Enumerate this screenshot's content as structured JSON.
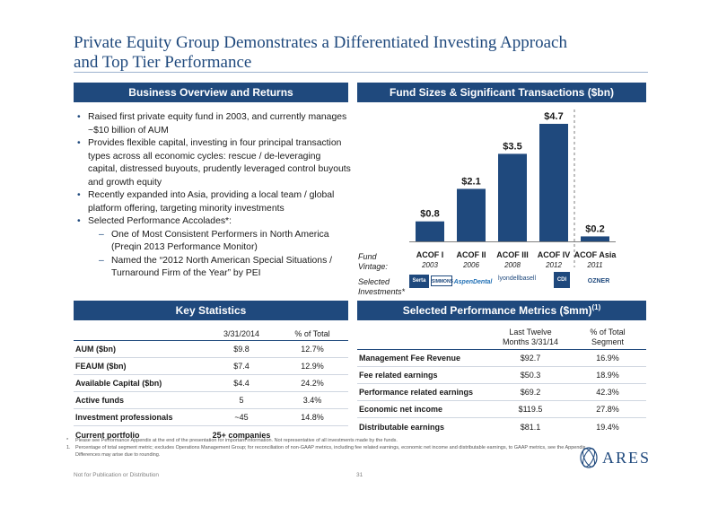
{
  "title": {
    "line1": "Private Equity Group Demonstrates a Differentiated Investing Approach",
    "line2": "and Top Tier Performance"
  },
  "sections": {
    "business": "Business Overview and Returns",
    "funds": "Fund Sizes & Significant Transactions ($bn)",
    "key_stats": "Key Statistics",
    "metrics": "Selected Performance Metrics ($mm)",
    "metrics_sup": "(1)"
  },
  "overview": {
    "bullets": [
      "Raised first private equity fund in 2003, and currently manages ~$10 billion of AUM",
      "Provides flexible capital, investing in four principal transaction types across all economic cycles: rescue / de-leveraging capital, distressed buyouts, prudently leveraged control buyouts and growth equity",
      "Recently expanded into Asia, providing a local team / global platform offering, targeting minority investments",
      "Selected Performance Accolades*:"
    ],
    "sub_bullets": [
      "One of Most Consistent Performers in North America (Preqin 2013 Performance Monitor)",
      "Named the “2012 North American Special Situations / Turnaround Firm of the Year” by PEI"
    ]
  },
  "chart_data": {
    "type": "bar",
    "categories": [
      "ACOF I",
      "ACOF II",
      "ACOF III",
      "ACOF IV",
      "ACOF Asia"
    ],
    "vintages": [
      "2003",
      "2006",
      "2008",
      "2012",
      "2011"
    ],
    "values": [
      0.8,
      2.1,
      3.5,
      4.7,
      0.2
    ],
    "data_labels": [
      "$0.8",
      "$2.1",
      "$3.5",
      "$4.7",
      "$0.2"
    ],
    "unit": "$bn",
    "ylim": [
      0,
      4.7
    ],
    "bar_color": "#1f497d",
    "row_labels": {
      "vintage": "Fund\nVintage:",
      "investments": "Selected\nInvestments*"
    },
    "investment_logos": [
      "Serta",
      "SIMMONS",
      "AspenDental",
      "lyondellbasell",
      "CDI",
      "OZNER"
    ]
  },
  "key_stats": {
    "headers": [
      "",
      "3/31/2014",
      "% of Total"
    ],
    "rows": [
      [
        "AUM ($bn)",
        "$9.8",
        "12.7%"
      ],
      [
        "FEAUM ($bn)",
        "$7.4",
        "12.9%"
      ],
      [
        "Available Capital ($bn)",
        "$4.4",
        "24.2%"
      ],
      [
        "Active funds",
        "5",
        "3.4%"
      ],
      [
        "Investment professionals",
        "~45",
        "14.8%"
      ],
      [
        "Current portfolio",
        "25+ companies",
        ""
      ]
    ]
  },
  "metrics": {
    "headers": [
      "",
      "Last Twelve\nMonths 3/31/14",
      "% of Total\nSegment"
    ],
    "rows": [
      [
        "Management Fee Revenue",
        "$92.7",
        "16.9%"
      ],
      [
        "Fee related earnings",
        "$50.3",
        "18.9%"
      ],
      [
        "Performance related earnings",
        "$69.2",
        "42.3%"
      ],
      [
        "Economic net income",
        "$119.5",
        "27.8%"
      ],
      [
        "Distributable earnings",
        "$81.1",
        "19.4%"
      ]
    ]
  },
  "footnotes": [
    {
      "mark": "*",
      "text": "Please see Performance Appendix at the end of the presentation for important information. Not representative of all investments made by the funds."
    },
    {
      "mark": "1.",
      "text": "Percentage of total segment metric; excludes Operations Management Group; for reconciliation of non-GAAP metrics, including fee related earnings, economic net income and distributable earnings, to GAAP metrics, see the Appendix. Differences may arise due to rounding."
    }
  ],
  "footer": {
    "confidential": "Not for Publication or Distribution",
    "page": "31",
    "brand": "ARES"
  },
  "colors": {
    "brand_blue": "#1f497d",
    "rule": "#9db3cf"
  }
}
